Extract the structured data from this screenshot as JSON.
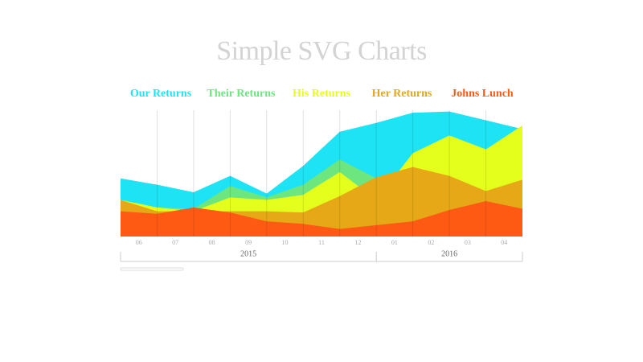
{
  "chart_data": {
    "type": "area",
    "title": "Simple SVG Charts",
    "categories": [
      "06",
      "07",
      "08",
      "09",
      "10",
      "11",
      "12",
      "01",
      "02",
      "03",
      "04",
      null
    ],
    "years": [
      "2015",
      "2016"
    ],
    "ylim": [
      0,
      100
    ],
    "grid": true,
    "series": [
      {
        "name": "Our Returns",
        "color": "#1ee3f5",
        "values": [
          46,
          41,
          35,
          48,
          34,
          56,
          83,
          90,
          98,
          99,
          92,
          85
        ]
      },
      {
        "name": "Their Returns",
        "color": "#6ee67f",
        "values": [
          28,
          23,
          22,
          40,
          31,
          41,
          61,
          46,
          34,
          28,
          22,
          28
        ]
      },
      {
        "name": "His Returns",
        "color": "#e5ff1c",
        "values": [
          29,
          23,
          20,
          31,
          29,
          33,
          51,
          29,
          66,
          80,
          69,
          88
        ]
      },
      {
        "name": "Her Returns",
        "color": "#e6a817",
        "values": [
          29,
          20,
          20,
          20,
          20,
          19,
          32,
          47,
          55,
          48,
          36,
          45
        ]
      },
      {
        "name": "Johns Lunch",
        "color": "#ff5a14",
        "values": [
          20,
          18,
          23,
          19,
          12,
          10,
          6,
          9,
          12,
          21,
          28,
          22
        ]
      }
    ]
  }
}
